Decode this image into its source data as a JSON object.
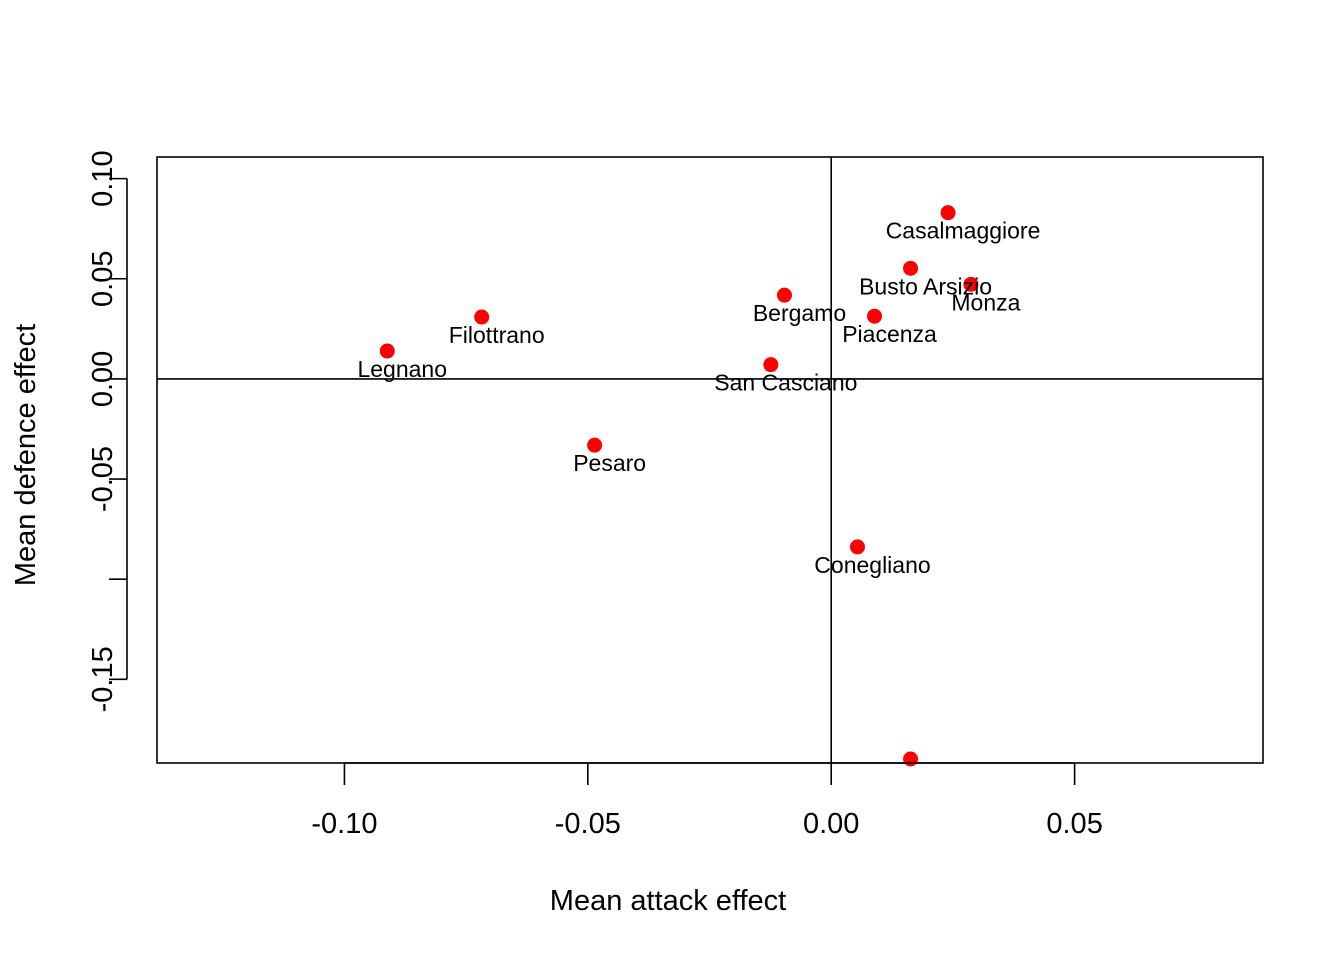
{
  "chart_data": {
    "type": "scatter",
    "title": "",
    "xlabel": "Mean attack effect",
    "ylabel": "Mean defence effect",
    "xlim": [
      -0.1385,
      0.0887
    ],
    "ylim": [
      -0.1918,
      0.1108
    ],
    "xticks": [
      -0.1,
      -0.05,
      0.0,
      0.05
    ],
    "xtick_labels": [
      "-0.10",
      "-0.05",
      "0.00",
      "0.05"
    ],
    "yticks": [
      -0.15,
      -0.1,
      -0.05,
      0.0,
      0.05,
      0.1
    ],
    "ytick_labels": [
      "-0.15",
      "",
      "-0.05",
      "0.00",
      "0.05",
      "0.10"
    ],
    "reference_lines": {
      "x": 0,
      "y": 0
    },
    "point_color": "#ff0000",
    "grid": false,
    "points": [
      {
        "label": "Casalmaggiore",
        "x": 0.024,
        "y": 0.083
      },
      {
        "label": "Busto Arsizio",
        "x": 0.0163,
        "y": 0.0552
      },
      {
        "label": "Monza",
        "x": 0.0287,
        "y": 0.0472
      },
      {
        "label": "Bergamo",
        "x": -0.0096,
        "y": 0.0418
      },
      {
        "label": "Piacenza",
        "x": 0.0089,
        "y": 0.0313
      },
      {
        "label": "Filottrano",
        "x": -0.0718,
        "y": 0.0309
      },
      {
        "label": "Legnano",
        "x": -0.0912,
        "y": 0.0139
      },
      {
        "label": "San Casciano",
        "x": -0.0124,
        "y": 0.0071
      },
      {
        "label": "Pesaro",
        "x": -0.0486,
        "y": -0.0331
      },
      {
        "label": "Conegliano",
        "x": 0.0054,
        "y": -0.0839
      },
      {
        "label": "",
        "x": 0.0163,
        "y": -0.1898
      }
    ]
  }
}
